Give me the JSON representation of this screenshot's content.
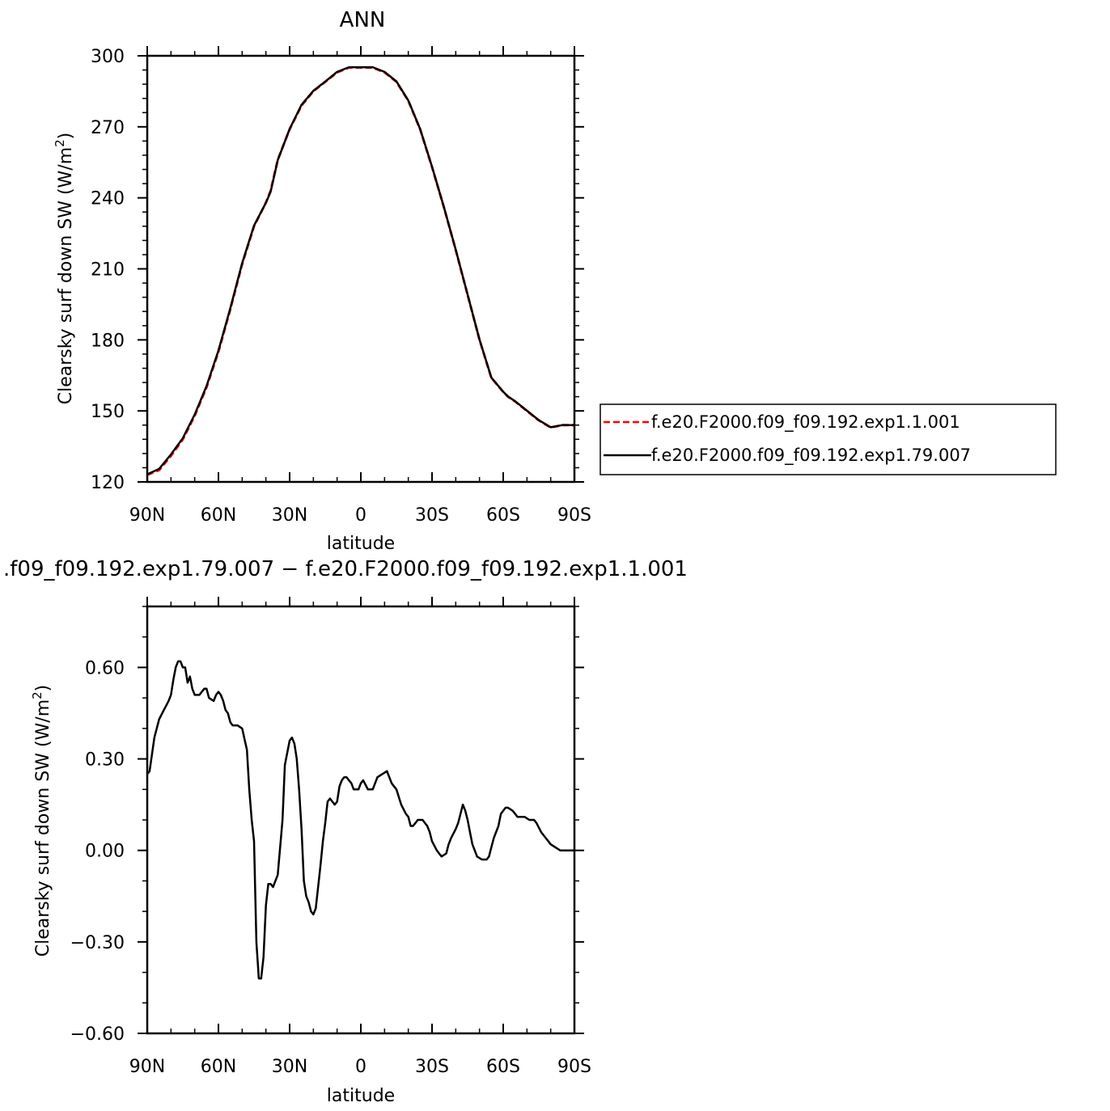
{
  "chart_data": [
    {
      "type": "line",
      "title": "ANN",
      "xlabel": "latitude",
      "ylabel": "Clearsky surf down SW (W/m",
      "ylabel_superscript": "2",
      "ylabel_suffix": ")",
      "xlim": [
        90,
        -90
      ],
      "ylim": [
        120,
        300
      ],
      "x_ticks": [
        90,
        60,
        30,
        0,
        -30,
        -60,
        -90
      ],
      "x_tick_labels": [
        "90N",
        "60N",
        "30N",
        "0",
        "30S",
        "60S",
        "90S"
      ],
      "y_ticks": [
        120,
        150,
        180,
        210,
        240,
        270,
        300
      ],
      "y_tick_labels": [
        "120",
        "150",
        "180",
        "210",
        "240",
        "270",
        "300"
      ],
      "legend_position": "right",
      "x": [
        90,
        85,
        80,
        75,
        70,
        65,
        60,
        55,
        50,
        45,
        40,
        38,
        35,
        30,
        25,
        20,
        15,
        10,
        5,
        0,
        -5,
        -10,
        -15,
        -20,
        -25,
        -30,
        -35,
        -40,
        -45,
        -50,
        -55,
        -60,
        -62,
        -65,
        -70,
        -75,
        -80,
        -85,
        -87,
        -90
      ],
      "series": [
        {
          "name": "f.e20.F2000.f09_f09.192.exp1.1.001",
          "color": "#ff0000",
          "style": "dashed",
          "values": [
            123,
            125,
            131,
            138,
            148,
            160,
            175,
            193,
            212,
            228,
            238,
            243,
            256,
            269,
            279,
            285,
            289,
            293,
            295,
            295,
            295,
            293,
            289,
            281,
            269,
            253,
            236,
            218,
            199,
            180,
            164,
            158,
            156,
            154,
            150,
            146,
            143,
            144,
            144,
            144
          ]
        },
        {
          "name": "f.e20.F2000.f09_f09.192.exp1.79.007",
          "color": "#000000",
          "style": "solid",
          "values": [
            123.2,
            125.5,
            131.6,
            138.5,
            148.5,
            160.5,
            175.5,
            193.4,
            212.4,
            228.3,
            237.9,
            242.6,
            255.9,
            269.1,
            279.3,
            285.2,
            289.1,
            293.2,
            295.2,
            295.2,
            295.2,
            293.2,
            289.2,
            281.1,
            269.1,
            253.1,
            236.1,
            218.1,
            199.1,
            180.1,
            164.1,
            158.1,
            156.1,
            154.1,
            150.1,
            146.1,
            143.1,
            144.0,
            144.0,
            144.0
          ]
        }
      ]
    },
    {
      "type": "line",
      "title": ".f09_f09.192.exp1.79.007 − f.e20.F2000.f09_f09.192.exp1.1.001",
      "xlabel": "latitude",
      "ylabel": "Clearsky surf down SW (W/m",
      "ylabel_superscript": "2",
      "ylabel_suffix": ")",
      "xlim": [
        90,
        -90
      ],
      "ylim": [
        -0.6,
        0.8
      ],
      "x_ticks": [
        90,
        60,
        30,
        0,
        -30,
        -60,
        -90
      ],
      "x_tick_labels": [
        "90N",
        "60N",
        "30N",
        "0",
        "30S",
        "60S",
        "90S"
      ],
      "y_ticks": [
        -0.6,
        -0.3,
        0.0,
        0.3,
        0.6
      ],
      "y_tick_labels": [
        "−0.60",
        "−0.30",
        "0.00",
        "0.30",
        "0.60"
      ],
      "x": [
        90,
        89,
        87,
        85,
        83,
        81,
        80,
        79,
        78,
        77,
        76,
        75,
        74,
        73,
        72,
        71,
        70,
        68,
        66,
        65,
        64,
        62,
        61,
        60,
        59,
        58,
        57,
        56,
        55,
        54,
        52,
        50,
        48,
        47,
        46,
        45,
        44,
        43,
        42,
        41,
        40,
        39,
        38,
        37,
        36,
        35,
        33,
        32,
        30,
        29,
        28,
        27,
        26,
        25,
        24,
        23,
        22,
        21,
        20,
        19,
        18,
        17,
        16,
        15,
        14,
        13,
        11,
        10,
        9,
        8,
        7,
        6,
        5,
        4,
        3,
        1,
        0,
        -1,
        -3,
        -5,
        -7,
        -9,
        -11,
        -13,
        -15,
        -17,
        -19,
        -20,
        -21,
        -22,
        -23,
        -24,
        -25,
        -26,
        -27,
        -28,
        -29,
        -30,
        -32,
        -34,
        -36,
        -37,
        -38,
        -40,
        -41,
        -42,
        -43,
        -44,
        -45,
        -46,
        -47,
        -49,
        -51,
        -53,
        -54,
        -55,
        -56,
        -58,
        -59,
        -61,
        -62,
        -64,
        -65,
        -66,
        -67,
        -69,
        -71,
        -72,
        -73,
        -74,
        -76,
        -78,
        -80,
        -82,
        -84,
        -86,
        -88,
        -90
      ],
      "series": [
        {
          "name": "",
          "color": "#000000",
          "style": "solid",
          "values": [
            0.25,
            0.26,
            0.37,
            0.43,
            0.46,
            0.49,
            0.51,
            0.56,
            0.6,
            0.62,
            0.62,
            0.6,
            0.6,
            0.55,
            0.57,
            0.53,
            0.51,
            0.51,
            0.53,
            0.53,
            0.5,
            0.49,
            0.51,
            0.52,
            0.51,
            0.49,
            0.46,
            0.45,
            0.42,
            0.41,
            0.41,
            0.4,
            0.33,
            0.2,
            0.1,
            0.03,
            -0.3,
            -0.42,
            -0.42,
            -0.35,
            -0.18,
            -0.11,
            -0.11,
            -0.12,
            -0.1,
            -0.08,
            0.1,
            0.28,
            0.36,
            0.37,
            0.35,
            0.3,
            0.2,
            0.07,
            -0.1,
            -0.15,
            -0.17,
            -0.2,
            -0.21,
            -0.19,
            -0.12,
            -0.05,
            0.03,
            0.09,
            0.16,
            0.17,
            0.15,
            0.16,
            0.21,
            0.23,
            0.24,
            0.24,
            0.23,
            0.22,
            0.2,
            0.2,
            0.22,
            0.23,
            0.2,
            0.2,
            0.24,
            0.25,
            0.26,
            0.22,
            0.2,
            0.15,
            0.12,
            0.11,
            0.08,
            0.08,
            0.09,
            0.1,
            0.1,
            0.1,
            0.09,
            0.08,
            0.06,
            0.03,
            0.0,
            -0.02,
            -0.01,
            0.02,
            0.04,
            0.07,
            0.09,
            0.12,
            0.15,
            0.13,
            0.1,
            0.06,
            0.02,
            -0.02,
            -0.03,
            -0.03,
            -0.02,
            0.01,
            0.04,
            0.08,
            0.12,
            0.14,
            0.14,
            0.13,
            0.12,
            0.11,
            0.11,
            0.11,
            0.1,
            0.1,
            0.1,
            0.09,
            0.06,
            0.04,
            0.02,
            0.01,
            0.0,
            0.0,
            0.0,
            0.0
          ]
        }
      ]
    }
  ]
}
